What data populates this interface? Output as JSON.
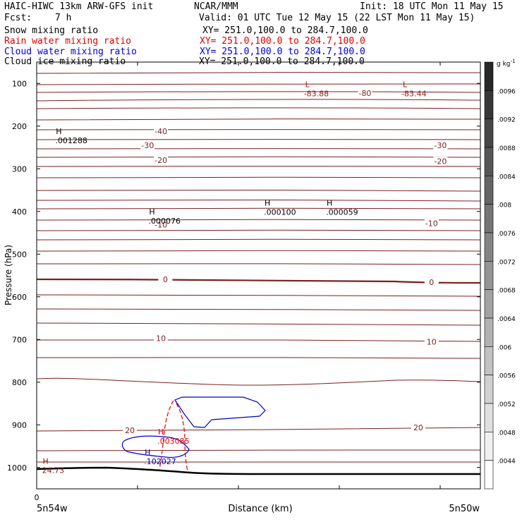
{
  "header": {
    "model": "HAIC-HIWC 13km ARW-GFS init",
    "org": "NCAR/MMM",
    "init": "Init: 18 UTC Mon 11 May 15",
    "fcst_label": "Fcst:",
    "fcst_value": "7 h",
    "valid": "Valid: 01 UTC Tue 12 May 15 (22 LST Mon 11 May 15)",
    "fields": [
      {
        "name": "Snow mixing ratio",
        "xy": "XY= 251.0,100.0 to 284.7,100.0",
        "color": "#000000"
      },
      {
        "name": "Rain water mixing ratio",
        "xy": "XY= 251.0,100.0 to 284.7,100.0",
        "color": "#e00000"
      },
      {
        "name": "Cloud water mixing ratio",
        "xy": "XY= 251.0,100.0 to 284.7,100.0",
        "color": "#0000cc"
      },
      {
        "name": "Cloud ice mixing ratio",
        "xy": "XY= 251.0,100.0 to 284.7,100.0",
        "color": "#000000"
      }
    ]
  },
  "chart_data": {
    "type": "cross-section contour",
    "ylabel": "Pressure (hPa)",
    "xlabel": "Distance (km)",
    "x_start_label": "0",
    "x_left_label": "5n54w",
    "x_right_label": "5n50w",
    "ylim": [
      1050,
      50
    ],
    "yticks": [
      100,
      200,
      300,
      400,
      500,
      600,
      700,
      800,
      900,
      1000
    ],
    "colorbar": {
      "unit_prefix": "g kg",
      "unit_suffix": "-1",
      "labels": [
        ".0096",
        ".0092",
        ".0088",
        ".0084",
        ".008",
        ".0076",
        ".0072",
        ".0068",
        ".0064",
        ".006",
        ".0056",
        ".0052",
        ".0048",
        ".0044"
      ]
    },
    "temperature_labels": [
      {
        "text": "-80",
        "p": 123,
        "x": 0.74
      },
      {
        "text": "-40",
        "p": 212,
        "x": 0.28
      },
      {
        "text": "-30",
        "p": 245,
        "x": 0.25
      },
      {
        "text": "-30",
        "p": 245,
        "x": 0.91
      },
      {
        "text": "-20",
        "p": 280,
        "x": 0.28
      },
      {
        "text": "-20",
        "p": 282,
        "x": 0.91
      },
      {
        "text": "-10",
        "p": 431,
        "x": 0.28
      },
      {
        "text": "-10",
        "p": 428,
        "x": 0.89
      },
      {
        "text": "0",
        "p": 559,
        "x": 0.29
      },
      {
        "text": "0",
        "p": 566,
        "x": 0.89
      },
      {
        "text": "10",
        "p": 697,
        "x": 0.28
      },
      {
        "text": "10",
        "p": 705,
        "x": 0.89
      },
      {
        "text": "20",
        "p": 913,
        "x": 0.21
      },
      {
        "text": "20",
        "p": 906,
        "x": 0.86
      }
    ],
    "extrema": [
      {
        "sym": "L",
        "value": "-83.88",
        "p": 115,
        "x": 0.61,
        "color": "#8b1a1a"
      },
      {
        "sym": "L",
        "value": "-83.44",
        "p": 115,
        "x": 0.83,
        "color": "#8b1a1a"
      },
      {
        "sym": "H",
        "value": ".001288",
        "p": 225,
        "x": 0.05,
        "color": "#000000"
      },
      {
        "sym": "H",
        "value": ".000076",
        "p": 414,
        "x": 0.26,
        "color": "#000000"
      },
      {
        "sym": "H",
        "value": ".000100",
        "p": 393,
        "x": 0.52,
        "color": "#000000"
      },
      {
        "sym": "H",
        "value": ".000059",
        "p": 393,
        "x": 0.66,
        "color": "#000000"
      },
      {
        "sym": "H",
        "value": ".003085",
        "p": 929,
        "x": 0.28,
        "color": "#e00000"
      },
      {
        "sym": "H",
        "value": ".102027",
        "p": 977,
        "x": 0.25,
        "color": "#0000cc"
      },
      {
        "sym": "H",
        "value": "24.73",
        "p": 998,
        "x": 0.02,
        "color": "#8b1a1a"
      }
    ]
  }
}
